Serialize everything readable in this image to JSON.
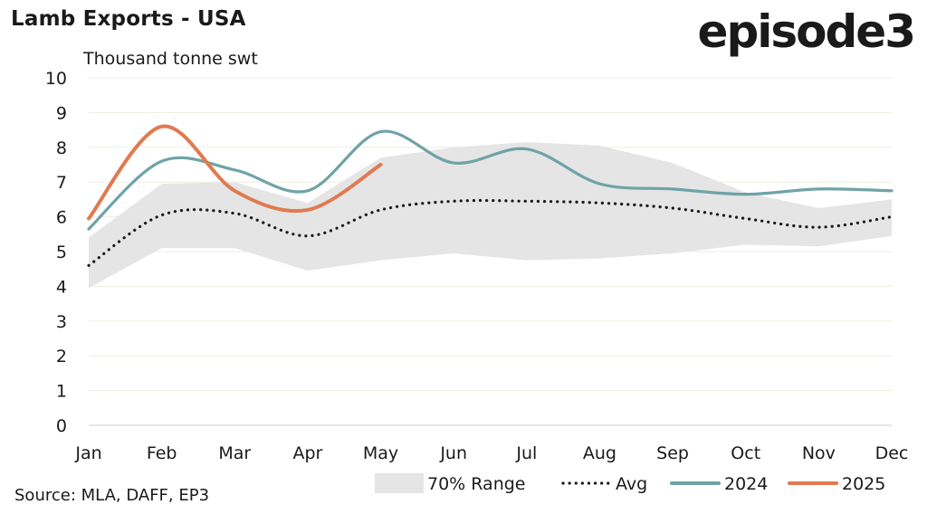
{
  "header": {
    "title": "Lamb Exports - USA",
    "logo_text": "episode3",
    "unit_label": "Thousand tonne swt"
  },
  "footer": {
    "source": "Source: MLA, DAFF, EP3"
  },
  "colors": {
    "range": "#e5e5e5",
    "avg": "#1a1a1a",
    "s2024": "#6fa3a8",
    "s2025": "#e07a4f",
    "grid": "#efeddc"
  },
  "chart_data": {
    "type": "line",
    "title": "Lamb Exports - USA",
    "ylabel": "Thousand tonne swt",
    "ylim": [
      0,
      10
    ],
    "yticks": [
      "0",
      "1",
      "2",
      "3",
      "4",
      "5",
      "6",
      "7",
      "8",
      "9",
      "10"
    ],
    "categories": [
      "Jan",
      "Feb",
      "Mar",
      "Apr",
      "May",
      "Jun",
      "Jul",
      "Aug",
      "Sep",
      "Oct",
      "Nov",
      "Dec"
    ],
    "range_70": {
      "name": "70% Range",
      "upper": [
        5.4,
        6.95,
        7.0,
        6.4,
        7.7,
        8.0,
        8.15,
        8.05,
        7.55,
        6.7,
        6.25,
        6.5
      ],
      "lower": [
        3.95,
        5.1,
        5.1,
        4.45,
        4.75,
        4.95,
        4.75,
        4.8,
        4.95,
        5.2,
        5.15,
        5.45
      ]
    },
    "series": [
      {
        "name": "Avg",
        "style": "dotted",
        "values": [
          4.6,
          6.05,
          6.1,
          5.45,
          6.2,
          6.45,
          6.45,
          6.4,
          6.25,
          5.95,
          5.7,
          6.0
        ]
      },
      {
        "name": "2024",
        "style": "solid",
        "values": [
          5.65,
          7.6,
          7.35,
          6.75,
          8.45,
          7.55,
          7.95,
          6.95,
          6.8,
          6.65,
          6.8,
          6.75
        ]
      },
      {
        "name": "2025",
        "style": "solid",
        "values": [
          5.95,
          8.6,
          6.75,
          6.2,
          7.5,
          null,
          null,
          null,
          null,
          null,
          null,
          null
        ]
      }
    ],
    "grid": true,
    "legend_position": "bottom-right"
  }
}
